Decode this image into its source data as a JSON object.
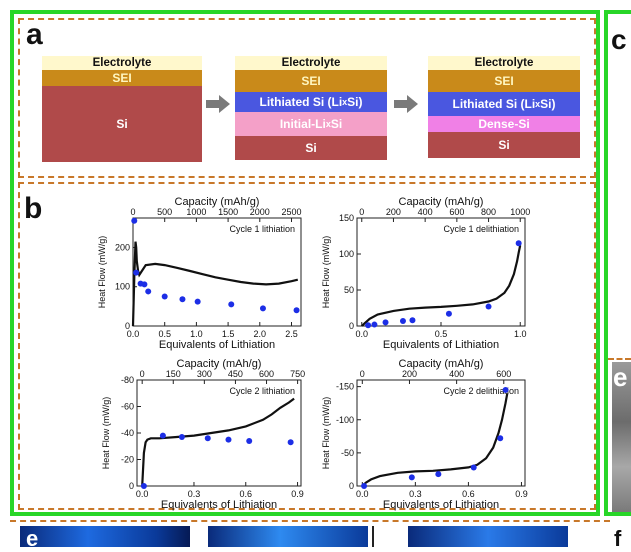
{
  "panels": {
    "a": "a",
    "b": "b",
    "c": "c",
    "e": "e",
    "bottom_left": "e",
    "bottom_right": "f"
  },
  "schematic": {
    "stack1": [
      "Electrolyte",
      "SEI",
      "Si"
    ],
    "stack2": [
      "Electrolyte",
      "SEI",
      "Lithiated Si (LixSi)",
      "Initial-LixSi",
      "Si"
    ],
    "stack3": [
      "Electrolyte",
      "SEI",
      "Lithiated Si (LixSi)",
      "Dense-Si",
      "Si"
    ]
  },
  "chart_data": [
    {
      "type": "line",
      "title": "Cycle 1 lithiation",
      "xlabel": "Equivalents of Lithiation",
      "ylabel": "Heat Flow (mW/g)",
      "top_label": "Capacity (mAh/g)",
      "xlim": [
        0,
        2.65
      ],
      "ylim": [
        0,
        275
      ],
      "xticks": [
        "0.0",
        "0.5",
        "1.0",
        "1.5",
        "2.0",
        "2.5"
      ],
      "yticks": [
        "0",
        "100",
        "200"
      ],
      "top_ticks": [
        "0",
        "500",
        "1000",
        "1500",
        "2000",
        "2500"
      ],
      "top_scale": 1000,
      "series": [
        {
          "x": [
            0,
            0.02,
            0.04,
            0.05,
            0.06,
            0.08,
            0.1,
            0.2,
            0.35,
            0.5,
            0.7,
            0.9,
            1.1,
            1.3,
            1.5,
            1.7,
            1.9,
            2.1,
            2.3,
            2.5,
            2.6
          ],
          "y": [
            0,
            125,
            215,
            200,
            165,
            140,
            130,
            155,
            158,
            155,
            148,
            140,
            132,
            124,
            118,
            112,
            108,
            106,
            108,
            114,
            118
          ]
        }
      ],
      "points": {
        "x": [
          0.02,
          0.05,
          0.12,
          0.18,
          0.24,
          0.5,
          0.78,
          1.02,
          1.55,
          2.05,
          2.58
        ],
        "y": [
          268,
          136,
          108,
          106,
          88,
          75,
          68,
          62,
          55,
          45,
          40
        ]
      }
    },
    {
      "type": "line",
      "title": "Cycle 1 delithiation",
      "xlabel": "Equivalents of Lithiation",
      "ylabel": "Heat Flow (mW/g)",
      "top_label": "Capacity (mAh/g)",
      "xlim": [
        -0.03,
        1.03
      ],
      "ylim": [
        0,
        150
      ],
      "xticks": [
        "0.0",
        "0.5",
        "1.0"
      ],
      "yticks": [
        "0",
        "50",
        "100",
        "150"
      ],
      "top_ticks": [
        "0",
        "200",
        "400",
        "600",
        "800",
        "1000"
      ],
      "top_scale": 1000,
      "series": [
        {
          "x": [
            0,
            0.02,
            0.05,
            0.1,
            0.2,
            0.3,
            0.4,
            0.5,
            0.6,
            0.7,
            0.8,
            0.85,
            0.9,
            0.93,
            0.96,
            0.98,
            0.99,
            1.0
          ],
          "y": [
            0,
            4,
            10,
            16,
            21,
            24,
            25.5,
            26.5,
            28,
            30,
            34,
            38,
            46,
            56,
            72,
            90,
            102,
            112
          ]
        }
      ],
      "points": {
        "x": [
          0.04,
          0.08,
          0.15,
          0.26,
          0.32,
          0.55,
          0.8,
          0.99
        ],
        "y": [
          1,
          2,
          5,
          7,
          8,
          17,
          27,
          115
        ]
      }
    },
    {
      "type": "line",
      "title": "Cycle 2 lithiation",
      "xlabel": "Equivalents of Lithiation",
      "ylabel": "Heat Flow (mW/g)",
      "top_label": "Capacity (mAh/g)",
      "xlim": [
        -0.03,
        0.92
      ],
      "ylim": [
        0,
        -80
      ],
      "xticks": [
        "0.0",
        "0.3",
        "0.6",
        "0.9"
      ],
      "yticks": [
        "0",
        "-20",
        "-40",
        "-60",
        "-80"
      ],
      "top_ticks": [
        "0",
        "150",
        "300",
        "450",
        "600",
        "750"
      ],
      "top_scale": 833,
      "series": [
        {
          "x": [
            0,
            0.01,
            0.02,
            0.03,
            0.05,
            0.1,
            0.2,
            0.3,
            0.4,
            0.5,
            0.6,
            0.7,
            0.75,
            0.8,
            0.85,
            0.88
          ],
          "y": [
            0,
            -25,
            -33,
            -35,
            -36,
            -36,
            -37,
            -38,
            -40,
            -42,
            -45,
            -50,
            -54,
            -59,
            -63,
            -66
          ]
        }
      ],
      "points": {
        "x": [
          0.01,
          0.12,
          0.23,
          0.38,
          0.5,
          0.62,
          0.86
        ],
        "y": [
          0,
          -38,
          -37,
          -36,
          -35,
          -34,
          -33
        ]
      }
    },
    {
      "type": "line",
      "title": "Cycle 2 delithiation",
      "xlabel": "Equivalents of Lithiation",
      "ylabel": "Heat Flow (mW/g)",
      "top_label": "Capacity (mAh/g)",
      "xlim": [
        -0.03,
        0.92
      ],
      "ylim": [
        0,
        -160
      ],
      "xticks": [
        "0.0",
        "0.3",
        "0.6",
        "0.9"
      ],
      "yticks": [
        "0",
        "-50",
        "-100",
        "-150"
      ],
      "top_ticks": [
        "0",
        "200",
        "400",
        "600"
      ],
      "top_scale": 750,
      "series": [
        {
          "x": [
            0,
            0.02,
            0.05,
            0.1,
            0.2,
            0.3,
            0.4,
            0.5,
            0.6,
            0.65,
            0.7,
            0.74,
            0.77,
            0.79,
            0.81,
            0.82
          ],
          "y": [
            0,
            -5,
            -10,
            -15,
            -20,
            -22,
            -23,
            -25,
            -28,
            -32,
            -42,
            -58,
            -80,
            -100,
            -125,
            -140
          ]
        }
      ],
      "points": {
        "x": [
          0.01,
          0.28,
          0.43,
          0.63,
          0.78,
          0.81
        ],
        "y": [
          0,
          -13,
          -18,
          -28,
          -72,
          -145
        ]
      }
    }
  ]
}
